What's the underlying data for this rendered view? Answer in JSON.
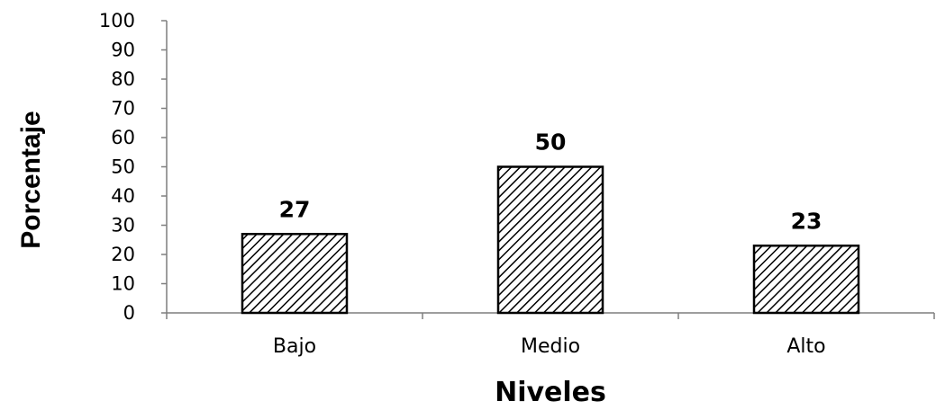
{
  "chart_data": {
    "type": "bar",
    "categories": [
      "Bajo",
      "Medio",
      "Alto"
    ],
    "values": [
      27,
      50,
      23
    ],
    "data_labels": [
      "27",
      "50",
      "23"
    ],
    "title": "",
    "xlabel": "Niveles",
    "ylabel": "Porcentaje",
    "ylim": [
      0,
      100
    ],
    "yticks": [
      "0",
      "10",
      "20",
      "30",
      "40",
      "50",
      "60",
      "70",
      "80",
      "90",
      "100"
    ],
    "bar_fill": "diagonal-hatch",
    "bar_color": "#000000",
    "background": "#ffffff",
    "grid": false,
    "legend": "none"
  }
}
